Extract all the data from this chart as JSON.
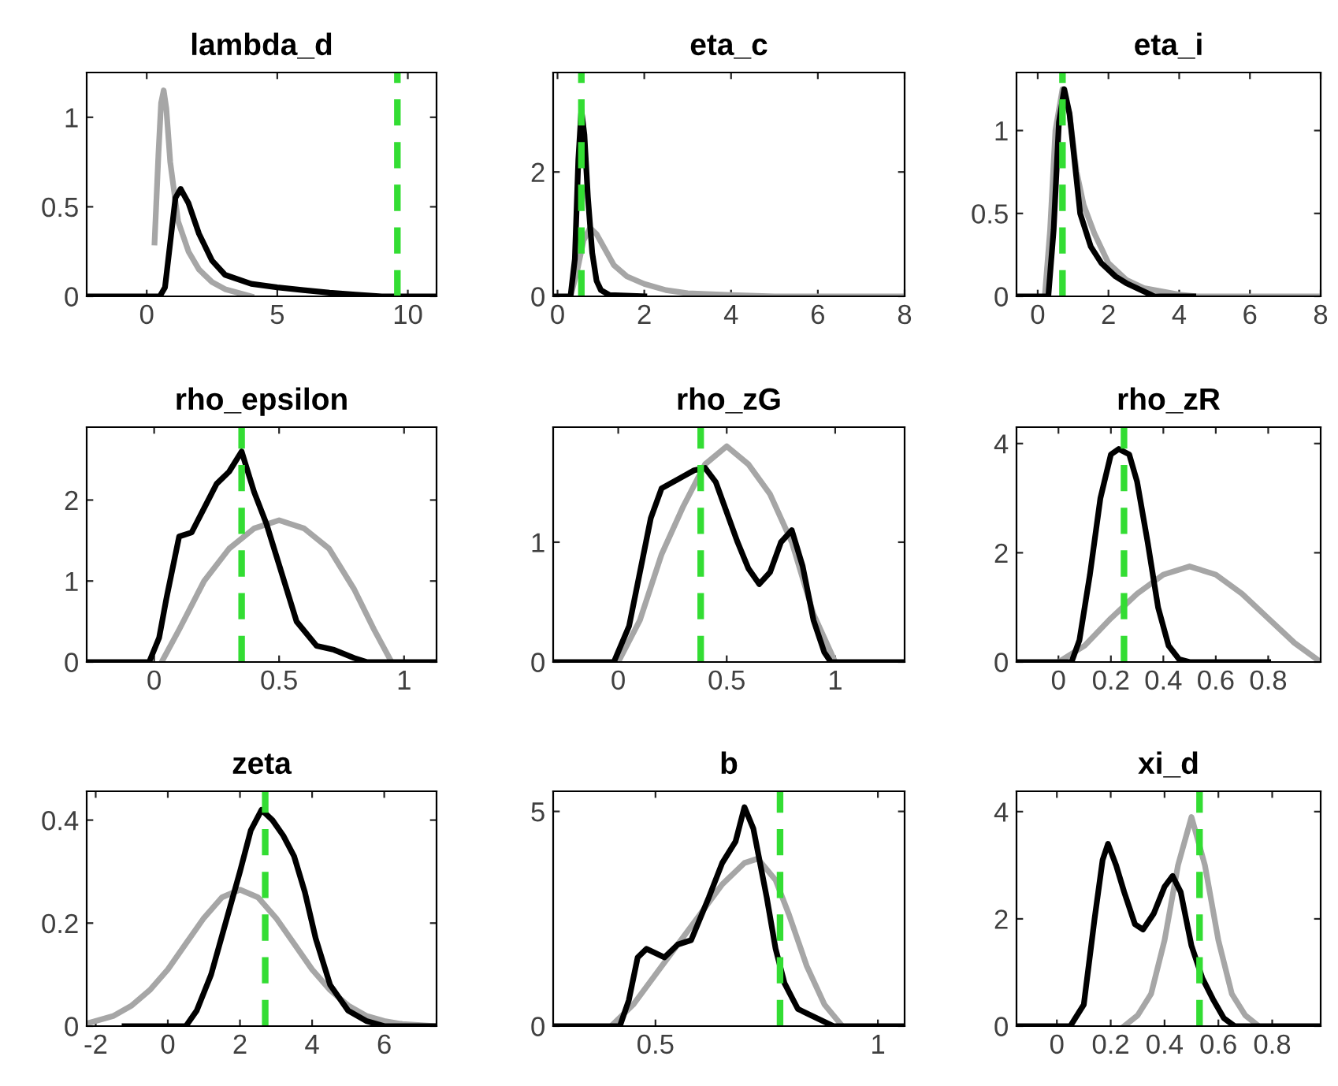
{
  "chart_data": [
    {
      "type": "line",
      "title": "lambda_d",
      "xlim": [
        -2.3,
        11.1
      ],
      "xticks": [
        0,
        5,
        10
      ],
      "ylim": [
        0,
        1.25
      ],
      "yticks": [
        0,
        0.5,
        1
      ],
      "line_style": "solid",
      "ref_lines": [
        {
          "axis": "x",
          "value": 9.6,
          "color": "#33dd33",
          "line_style": "dashed"
        }
      ],
      "series": [
        {
          "color": "#a6a6a6",
          "x": [
            0.3,
            0.45,
            0.55,
            0.65,
            0.75,
            0.9,
            1.2,
            1.6,
            2.0,
            2.5,
            3.0,
            4.0
          ],
          "values": [
            0.3,
            0.8,
            1.08,
            1.15,
            1.05,
            0.75,
            0.42,
            0.25,
            0.15,
            0.08,
            0.04,
            0
          ]
        },
        {
          "color": "#000000",
          "x": [
            -2.3,
            0.5,
            0.7,
            0.9,
            1.1,
            1.3,
            1.6,
            2.0,
            2.5,
            3.0,
            4.0,
            5.0,
            6.0,
            7.0,
            8.0,
            9.0,
            11.1
          ],
          "values": [
            0,
            0,
            0.05,
            0.3,
            0.55,
            0.6,
            0.52,
            0.35,
            0.2,
            0.12,
            0.07,
            0.05,
            0.035,
            0.02,
            0.01,
            0,
            0
          ]
        }
      ]
    },
    {
      "type": "line",
      "title": "eta_c",
      "xlim": [
        -0.1,
        8
      ],
      "xticks": [
        0,
        2,
        4,
        6,
        8
      ],
      "ylim": [
        0,
        3.6
      ],
      "yticks": [
        0,
        2
      ],
      "line_style": "solid",
      "ref_lines": [
        {
          "axis": "x",
          "value": 0.55,
          "color": "#33dd33",
          "line_style": "dashed"
        }
      ],
      "series": [
        {
          "color": "#a6a6a6",
          "x": [
            0.3,
            0.45,
            0.6,
            0.75,
            0.9,
            1.1,
            1.3,
            1.6,
            2.0,
            2.5,
            3.0,
            4.0,
            5.0,
            8.0
          ],
          "values": [
            0,
            0.4,
            0.9,
            1.1,
            1.0,
            0.75,
            0.5,
            0.32,
            0.2,
            0.1,
            0.05,
            0.02,
            0,
            0
          ]
        },
        {
          "color": "#000000",
          "x": [
            -0.1,
            0.3,
            0.4,
            0.48,
            0.55,
            0.62,
            0.7,
            0.8,
            0.9,
            1.0,
            1.2,
            2.0
          ],
          "values": [
            0,
            0,
            0.6,
            2.2,
            3.0,
            2.6,
            1.6,
            0.7,
            0.25,
            0.1,
            0.02,
            0
          ]
        }
      ]
    },
    {
      "type": "line",
      "title": "eta_i",
      "xlim": [
        -0.6,
        8
      ],
      "xticks": [
        0,
        2,
        4,
        6,
        8
      ],
      "ylim": [
        0,
        1.35
      ],
      "yticks": [
        0,
        0.5,
        1
      ],
      "line_style": "solid",
      "ref_lines": [
        {
          "axis": "x",
          "value": 0.7,
          "color": "#33dd33",
          "line_style": "dashed"
        }
      ],
      "series": [
        {
          "color": "#a6a6a6",
          "x": [
            0.2,
            0.35,
            0.5,
            0.7,
            0.9,
            1.1,
            1.3,
            1.6,
            2.0,
            2.5,
            3.0,
            4.0,
            4.5,
            8.0
          ],
          "values": [
            0,
            0.4,
            1.0,
            1.25,
            1.1,
            0.75,
            0.55,
            0.38,
            0.2,
            0.1,
            0.05,
            0.01,
            0,
            0
          ]
        },
        {
          "color": "#000000",
          "x": [
            -0.6,
            0.3,
            0.45,
            0.6,
            0.75,
            0.9,
            1.0,
            1.2,
            1.5,
            1.8,
            2.2,
            2.5,
            3.0,
            3.3,
            4.4
          ],
          "values": [
            0,
            0,
            0.4,
            1.05,
            1.25,
            1.1,
            0.9,
            0.5,
            0.3,
            0.2,
            0.12,
            0.08,
            0.03,
            0,
            0
          ]
        }
      ]
    },
    {
      "type": "line",
      "title": "rho_epsilon",
      "xlim": [
        -0.27,
        1.13
      ],
      "xticks": [
        0,
        0.5,
        1
      ],
      "ylim": [
        0,
        2.9
      ],
      "yticks": [
        0,
        1,
        2
      ],
      "line_style": "solid",
      "ref_lines": [
        {
          "axis": "x",
          "value": 0.35,
          "color": "#33dd33",
          "line_style": "dashed"
        }
      ],
      "series": [
        {
          "color": "#a6a6a6",
          "x": [
            0.03,
            0.1,
            0.2,
            0.3,
            0.4,
            0.5,
            0.6,
            0.7,
            0.8,
            0.88,
            0.95
          ],
          "values": [
            0,
            0.4,
            1.0,
            1.4,
            1.65,
            1.75,
            1.65,
            1.4,
            0.9,
            0.4,
            0
          ]
        },
        {
          "color": "#000000",
          "x": [
            -0.27,
            -0.02,
            0.02,
            0.05,
            0.1,
            0.15,
            0.2,
            0.25,
            0.3,
            0.35,
            0.4,
            0.45,
            0.5,
            0.57,
            0.65,
            0.72,
            0.8,
            0.85,
            1.13
          ],
          "values": [
            0,
            0,
            0.3,
            0.8,
            1.55,
            1.6,
            1.9,
            2.2,
            2.35,
            2.6,
            2.1,
            1.7,
            1.2,
            0.5,
            0.2,
            0.15,
            0.05,
            0,
            0
          ]
        }
      ]
    },
    {
      "type": "line",
      "title": "rho_zG",
      "xlim": [
        -0.3,
        1.32
      ],
      "xticks": [
        0,
        0.5,
        1
      ],
      "ylim": [
        0,
        1.96
      ],
      "yticks": [
        0,
        1
      ],
      "line_style": "solid",
      "ref_lines": [
        {
          "axis": "x",
          "value": 0.38,
          "color": "#33dd33",
          "line_style": "dashed"
        }
      ],
      "series": [
        {
          "color": "#a6a6a6",
          "x": [
            0.0,
            0.1,
            0.2,
            0.3,
            0.4,
            0.5,
            0.6,
            0.7,
            0.8,
            0.9,
            1.0
          ],
          "values": [
            0,
            0.35,
            0.9,
            1.3,
            1.65,
            1.8,
            1.65,
            1.4,
            1.0,
            0.4,
            0
          ]
        },
        {
          "color": "#000000",
          "x": [
            -0.3,
            -0.02,
            0.05,
            0.1,
            0.15,
            0.2,
            0.3,
            0.35,
            0.4,
            0.45,
            0.5,
            0.55,
            0.6,
            0.65,
            0.7,
            0.75,
            0.8,
            0.85,
            0.9,
            0.95,
            0.98,
            1.32
          ],
          "values": [
            0,
            0,
            0.3,
            0.75,
            1.2,
            1.45,
            1.55,
            1.6,
            1.62,
            1.5,
            1.25,
            1.0,
            0.78,
            0.65,
            0.75,
            1.0,
            1.1,
            0.8,
            0.35,
            0.08,
            0,
            0
          ]
        }
      ]
    },
    {
      "type": "line",
      "title": "rho_zR",
      "xlim": [
        -0.16,
        1.0
      ],
      "xticks": [
        0,
        0.2,
        0.4,
        0.6,
        0.8
      ],
      "ylim": [
        0,
        4.3
      ],
      "yticks": [
        0,
        2,
        4
      ],
      "line_style": "solid",
      "ref_lines": [
        {
          "axis": "x",
          "value": 0.25,
          "color": "#33dd33",
          "line_style": "dashed"
        }
      ],
      "series": [
        {
          "color": "#a6a6a6",
          "x": [
            0.0,
            0.1,
            0.2,
            0.3,
            0.4,
            0.5,
            0.6,
            0.7,
            0.8,
            0.9,
            1.0
          ],
          "values": [
            0,
            0.3,
            0.8,
            1.25,
            1.6,
            1.75,
            1.6,
            1.25,
            0.8,
            0.35,
            0
          ]
        },
        {
          "color": "#000000",
          "x": [
            -0.16,
            0.05,
            0.08,
            0.12,
            0.16,
            0.2,
            0.23,
            0.27,
            0.3,
            0.34,
            0.38,
            0.42,
            0.46,
            0.5,
            0.8
          ],
          "values": [
            0,
            0,
            0.4,
            1.6,
            3.0,
            3.8,
            3.9,
            3.8,
            3.3,
            2.2,
            1.0,
            0.3,
            0.05,
            0,
            0
          ]
        }
      ]
    },
    {
      "type": "line",
      "title": "zeta",
      "xlim": [
        -2.25,
        7.45
      ],
      "xticks": [
        -2,
        0,
        2,
        4,
        6
      ],
      "ylim": [
        0,
        0.456
      ],
      "yticks": [
        0,
        0.2,
        0.4
      ],
      "line_style": "solid",
      "ref_lines": [
        {
          "axis": "x",
          "value": 2.7,
          "color": "#33dd33",
          "line_style": "dashed"
        }
      ],
      "series": [
        {
          "color": "#a6a6a6",
          "x": [
            -2.25,
            -1.5,
            -1,
            -0.5,
            0,
            0.5,
            1,
            1.5,
            2,
            2.5,
            3,
            3.5,
            4,
            4.5,
            5,
            5.5,
            6,
            6.5,
            7.45
          ],
          "values": [
            0.005,
            0.02,
            0.04,
            0.07,
            0.11,
            0.16,
            0.21,
            0.25,
            0.265,
            0.25,
            0.21,
            0.16,
            0.11,
            0.07,
            0.04,
            0.02,
            0.01,
            0.004,
            0
          ]
        },
        {
          "color": "#000000",
          "x": [
            -1.2,
            0.5,
            0.8,
            1.2,
            1.6,
            2.0,
            2.3,
            2.6,
            2.9,
            3.2,
            3.5,
            3.8,
            4.1,
            4.5,
            5.0,
            5.5,
            6.0,
            7.45
          ],
          "values": [
            0,
            0,
            0.03,
            0.1,
            0.2,
            0.3,
            0.38,
            0.42,
            0.4,
            0.37,
            0.33,
            0.26,
            0.17,
            0.08,
            0.03,
            0.01,
            0,
            0
          ]
        }
      ]
    },
    {
      "type": "line",
      "title": "b",
      "xlim": [
        0.27,
        1.06
      ],
      "xticks": [
        0.5,
        1
      ],
      "ylim": [
        0,
        5.47
      ],
      "yticks": [
        0,
        5
      ],
      "line_style": "solid",
      "ref_lines": [
        {
          "axis": "x",
          "value": 0.78,
          "color": "#33dd33",
          "line_style": "dashed"
        }
      ],
      "series": [
        {
          "color": "#a6a6a6",
          "x": [
            0.4,
            0.45,
            0.5,
            0.55,
            0.6,
            0.65,
            0.7,
            0.73,
            0.77,
            0.8,
            0.84,
            0.88,
            0.92
          ],
          "values": [
            0,
            0.5,
            1.2,
            1.9,
            2.6,
            3.3,
            3.8,
            3.9,
            3.4,
            2.6,
            1.4,
            0.5,
            0
          ]
        },
        {
          "color": "#000000",
          "x": [
            0.27,
            0.42,
            0.44,
            0.46,
            0.48,
            0.52,
            0.55,
            0.58,
            0.62,
            0.65,
            0.68,
            0.7,
            0.72,
            0.75,
            0.77,
            0.79,
            0.82,
            0.85,
            0.9,
            1.06
          ],
          "values": [
            0,
            0,
            0.6,
            1.6,
            1.8,
            1.6,
            1.9,
            2.0,
            3.0,
            3.8,
            4.3,
            5.1,
            4.6,
            3.0,
            1.8,
            1.0,
            0.4,
            0.25,
            0,
            0
          ]
        }
      ]
    },
    {
      "type": "line",
      "title": "xi_d",
      "xlim": [
        -0.15,
        0.98
      ],
      "xticks": [
        0,
        0.2,
        0.4,
        0.6,
        0.8
      ],
      "ylim": [
        0,
        4.38
      ],
      "yticks": [
        0,
        2,
        4
      ],
      "line_style": "solid",
      "ref_lines": [
        {
          "axis": "x",
          "value": 0.53,
          "color": "#33dd33",
          "line_style": "dashed"
        }
      ],
      "series": [
        {
          "color": "#a6a6a6",
          "x": [
            0.25,
            0.3,
            0.35,
            0.4,
            0.45,
            0.5,
            0.55,
            0.6,
            0.65,
            0.7,
            0.75
          ],
          "values": [
            0,
            0.2,
            0.6,
            1.6,
            3.0,
            3.9,
            3.0,
            1.6,
            0.6,
            0.2,
            0
          ]
        },
        {
          "color": "#000000",
          "x": [
            -0.15,
            0.05,
            0.1,
            0.14,
            0.17,
            0.19,
            0.22,
            0.25,
            0.29,
            0.32,
            0.36,
            0.4,
            0.43,
            0.46,
            0.5,
            0.54,
            0.58,
            0.62,
            0.66,
            0.98
          ],
          "values": [
            0,
            0,
            0.4,
            2.0,
            3.1,
            3.4,
            3.0,
            2.5,
            1.9,
            1.8,
            2.1,
            2.6,
            2.8,
            2.5,
            1.5,
            0.9,
            0.5,
            0.15,
            0,
            0
          ]
        }
      ]
    }
  ]
}
